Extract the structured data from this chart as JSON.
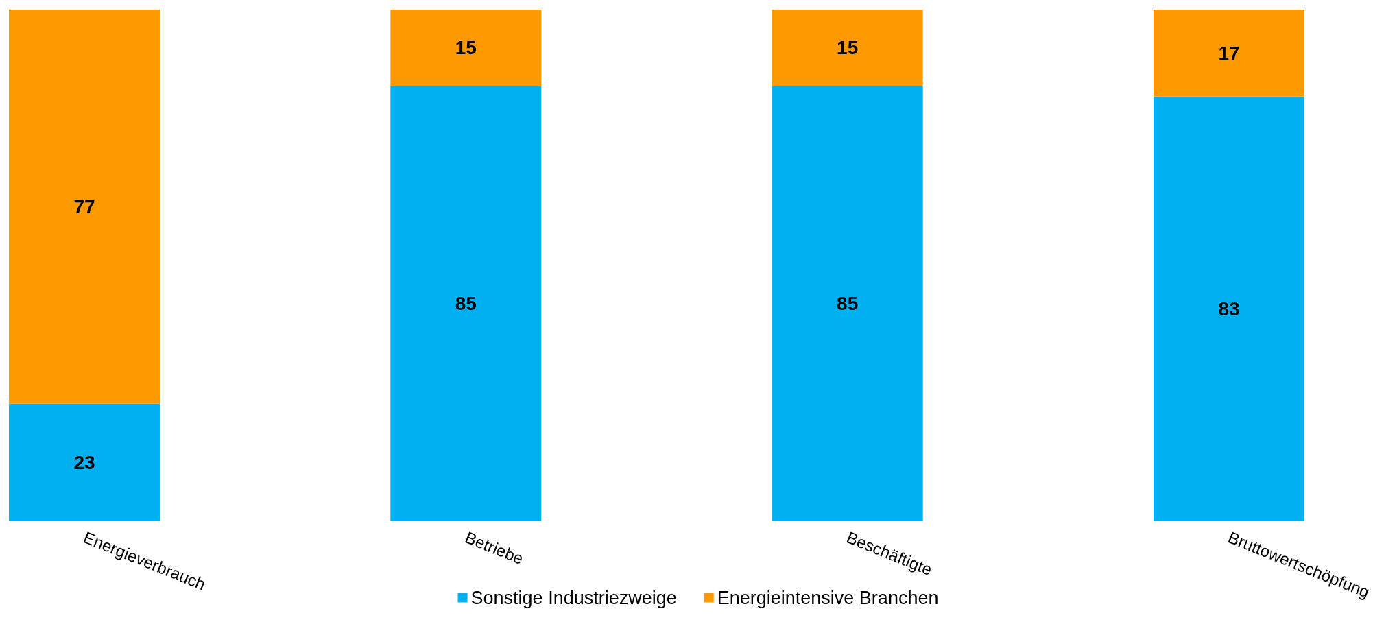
{
  "chart_data": {
    "type": "bar",
    "stacked": true,
    "data_labels": true,
    "legend": "bottom",
    "categories": [
      "Energieverbrauch",
      "Betriebe",
      "Beschäftigte",
      "Bruttowertschöpfung"
    ],
    "series": [
      {
        "name": "Sonstige Industriezweige",
        "color": "#00b0f0",
        "values": [
          23,
          85,
          85,
          83
        ]
      },
      {
        "name": "Energieintensive Branchen",
        "color": "#ff9900",
        "values": [
          77,
          15,
          15,
          17
        ]
      }
    ]
  }
}
